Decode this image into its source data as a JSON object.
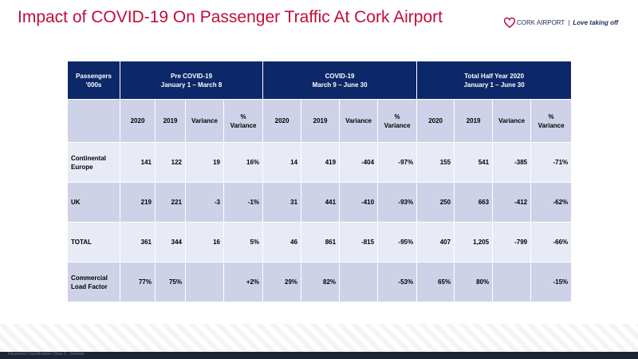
{
  "title": "Impact of COVID-19 On Passenger Traffic At Cork Airport",
  "logo": {
    "brand": "CORK AIRPORT",
    "separator": "|",
    "tagline": "Love taking off"
  },
  "table": {
    "corner": [
      "Passengers",
      "'000s"
    ],
    "groups": [
      {
        "title": "Pre COVID-19",
        "range": "January 1 – March 8"
      },
      {
        "title": "COVID-19",
        "range": "March 9 – June 30"
      },
      {
        "title": "Total Half Year 2020",
        "range": "January 1 – June 30"
      }
    ],
    "subheaders": [
      "2020",
      "2019",
      "Variance",
      "%\nVariance"
    ],
    "rows": [
      {
        "label": "Continental\nEurope",
        "cells": [
          "141",
          "122",
          "19",
          "16%",
          "14",
          "419",
          "-404",
          "-97%",
          "155",
          "541",
          "-385",
          "-71%"
        ]
      },
      {
        "label": "UK",
        "cells": [
          "219",
          "221",
          "-3",
          "-1%",
          "31",
          "441",
          "-410",
          "-93%",
          "250",
          "663",
          "-412",
          "-62%"
        ]
      },
      {
        "label": "TOTAL",
        "cells": [
          "361",
          "344",
          "16",
          "5%",
          "46",
          "861",
          "-815",
          "-95%",
          "407",
          "1,205",
          "-799",
          "-66%"
        ]
      },
      {
        "label": "Commercial\nLoad Factor",
        "cells": [
          "77%",
          "75%",
          "",
          "+2%",
          "29%",
          "82%",
          "",
          "-53%",
          "65%",
          "80%",
          "",
          "-15%"
        ]
      }
    ]
  },
  "footer": "Document Classification: Class 1 - General",
  "colors": {
    "header": "#0d2868",
    "title": "#c00d3a",
    "row_light": "#e8eaf5",
    "row_dark": "#cdd2e8"
  }
}
